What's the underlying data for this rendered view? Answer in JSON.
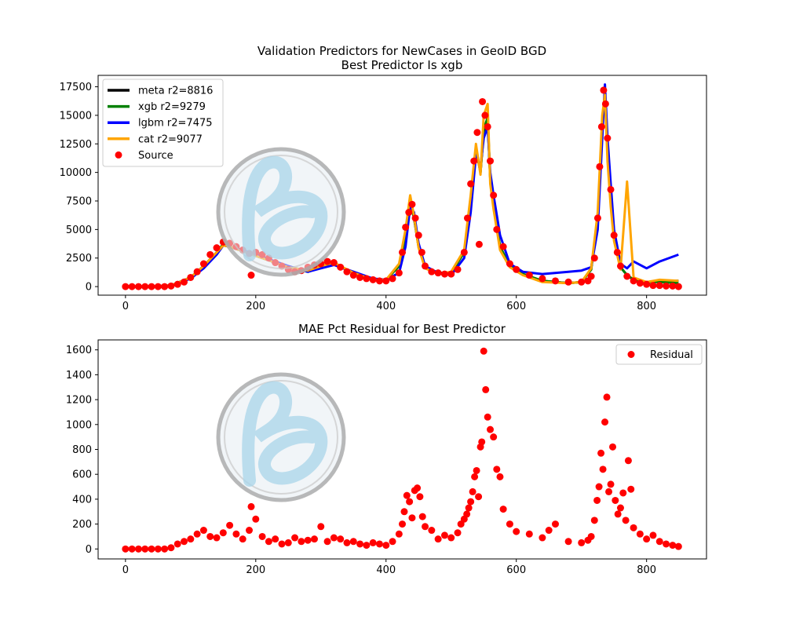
{
  "figure": {
    "background": "#ffffff"
  },
  "chart_data": [
    {
      "type": "line",
      "title": "Validation Predictors for NewCases in GeoID BGD",
      "subtitle": "Best Predictor Is xgb",
      "xlabel": "",
      "ylabel": "",
      "xlim": [
        -42,
        892
      ],
      "ylim": [
        -750,
        18500
      ],
      "xticks": [
        0,
        200,
        400,
        600,
        800
      ],
      "yticks": [
        0,
        2500,
        5000,
        7500,
        10000,
        12500,
        15000,
        17500
      ],
      "grid": false,
      "legend_position": "top-left",
      "x": [
        0,
        40,
        70,
        100,
        120,
        140,
        150,
        160,
        180,
        200,
        220,
        250,
        280,
        300,
        320,
        350,
        380,
        400,
        420,
        430,
        437,
        443,
        450,
        460,
        480,
        500,
        520,
        530,
        538,
        545,
        550,
        556,
        560,
        565,
        575,
        590,
        610,
        640,
        680,
        700,
        715,
        725,
        732,
        736,
        740,
        745,
        750,
        760,
        770,
        780,
        800,
        820,
        849
      ],
      "series": [
        {
          "name": "meta r2=8816",
          "color": "#000000",
          "values": [
            0,
            0,
            100,
            800,
            1800,
            3000,
            3700,
            3500,
            3100,
            2700,
            2300,
            1700,
            1300,
            1700,
            2000,
            1200,
            600,
            600,
            1800,
            4500,
            7500,
            6000,
            3500,
            1700,
            1200,
            1200,
            3000,
            7500,
            12000,
            10000,
            13500,
            14500,
            9500,
            7000,
            3500,
            1800,
            1100,
            500,
            300,
            400,
            1500,
            6000,
            14000,
            17000,
            12000,
            8000,
            4500,
            1700,
            1000,
            600,
            400,
            500,
            500
          ]
        },
        {
          "name": "xgb r2=9279",
          "color": "#008000",
          "values": [
            0,
            0,
            100,
            800,
            1800,
            3000,
            3700,
            3500,
            3100,
            2700,
            2300,
            1700,
            1300,
            1700,
            2000,
            1200,
            600,
            600,
            1800,
            4600,
            7600,
            6100,
            3500,
            1700,
            1200,
            1200,
            3000,
            7600,
            12200,
            10000,
            13800,
            14800,
            9500,
            7000,
            3500,
            1800,
            1100,
            500,
            300,
            400,
            1500,
            6000,
            14000,
            17200,
            12000,
            8000,
            4500,
            1700,
            1000,
            600,
            400,
            400,
            300
          ]
        },
        {
          "name": "lgbm r2=7475",
          "color": "#0000ff",
          "values": [
            0,
            0,
            100,
            700,
            1600,
            2800,
            3600,
            3500,
            3200,
            2800,
            2400,
            1800,
            1300,
            1600,
            1900,
            1300,
            700,
            600,
            1200,
            3500,
            7000,
            6500,
            3800,
            1800,
            1200,
            1000,
            2500,
            6500,
            11500,
            10500,
            13000,
            14000,
            10000,
            8000,
            4500,
            2000,
            1300,
            1100,
            1300,
            1400,
            1700,
            5000,
            13000,
            17700,
            13000,
            9000,
            5000,
            2000,
            1600,
            2200,
            1600,
            2200,
            2800
          ]
        },
        {
          "name": "cat r2=9077",
          "color": "#ffa500",
          "values": [
            0,
            0,
            100,
            800,
            1800,
            3000,
            3600,
            3500,
            3100,
            2700,
            2300,
            1700,
            1400,
            1800,
            2100,
            1200,
            600,
            600,
            2000,
            5000,
            8000,
            6200,
            3400,
            1600,
            1100,
            1300,
            3200,
            8000,
            12500,
            9800,
            15000,
            16000,
            9000,
            6800,
            3200,
            1700,
            1000,
            400,
            300,
            400,
            1600,
            6500,
            15000,
            16800,
            11000,
            7000,
            4000,
            1500,
            9200,
            800,
            400,
            600,
            500
          ]
        }
      ],
      "scatter_series": {
        "name": "Source",
        "color": "#ff0000",
        "x": [
          0,
          10,
          20,
          30,
          40,
          50,
          60,
          70,
          80,
          90,
          100,
          110,
          120,
          130,
          140,
          150,
          160,
          170,
          180,
          190,
          193,
          200,
          210,
          220,
          230,
          240,
          250,
          260,
          270,
          280,
          290,
          300,
          310,
          320,
          330,
          340,
          350,
          360,
          370,
          380,
          390,
          400,
          410,
          420,
          425,
          430,
          435,
          440,
          445,
          450,
          455,
          460,
          470,
          480,
          490,
          500,
          510,
          520,
          525,
          530,
          535,
          540,
          543,
          548,
          552,
          556,
          560,
          565,
          570,
          580,
          590,
          600,
          620,
          640,
          660,
          680,
          700,
          710,
          715,
          720,
          725,
          728,
          731,
          734,
          737,
          740,
          745,
          750,
          755,
          760,
          770,
          780,
          790,
          800,
          810,
          820,
          830,
          840,
          849
        ],
        "values": [
          0,
          0,
          0,
          0,
          0,
          0,
          0,
          50,
          200,
          400,
          800,
          1300,
          2000,
          2800,
          3400,
          3900,
          3800,
          3500,
          3200,
          2900,
          1000,
          3000,
          2800,
          2500,
          2100,
          1800,
          1500,
          1300,
          1400,
          1700,
          1900,
          2000,
          2200,
          2100,
          1700,
          1300,
          1000,
          800,
          700,
          600,
          500,
          500,
          700,
          1200,
          3000,
          5200,
          6500,
          7200,
          6000,
          4500,
          3000,
          1800,
          1300,
          1200,
          1100,
          1100,
          1500,
          3000,
          6000,
          9000,
          11000,
          13500,
          3700,
          16200,
          15000,
          14000,
          11000,
          8000,
          5000,
          3500,
          2000,
          1500,
          1000,
          700,
          500,
          400,
          400,
          500,
          900,
          2500,
          6000,
          10500,
          14000,
          17200,
          16000,
          13000,
          8500,
          4500,
          3000,
          1800,
          900,
          500,
          300,
          200,
          100,
          100,
          50,
          50,
          0
        ]
      }
    },
    {
      "type": "scatter",
      "title": "MAE Pct Residual for Best Predictor",
      "xlabel": "",
      "ylabel": "",
      "xlim": [
        -42,
        892
      ],
      "ylim": [
        -80,
        1680
      ],
      "xticks": [
        0,
        200,
        400,
        600,
        800
      ],
      "yticks": [
        0,
        200,
        400,
        600,
        800,
        1000,
        1200,
        1400,
        1600
      ],
      "grid": false,
      "legend_position": "top-right",
      "series": [
        {
          "name": "Residual",
          "color": "#ff0000",
          "x": [
            0,
            10,
            20,
            30,
            40,
            50,
            60,
            70,
            80,
            90,
            100,
            110,
            120,
            130,
            140,
            150,
            160,
            170,
            180,
            190,
            193,
            200,
            210,
            220,
            230,
            240,
            250,
            260,
            270,
            280,
            290,
            300,
            310,
            320,
            330,
            340,
            350,
            360,
            370,
            380,
            390,
            400,
            410,
            420,
            425,
            428,
            432,
            436,
            440,
            444,
            448,
            452,
            456,
            460,
            470,
            480,
            490,
            500,
            510,
            515,
            520,
            524,
            527,
            530,
            533,
            536,
            539,
            542,
            545,
            547,
            550,
            553,
            556,
            560,
            565,
            570,
            575,
            580,
            590,
            600,
            620,
            640,
            650,
            660,
            680,
            700,
            710,
            715,
            720,
            724,
            727,
            730,
            733,
            736,
            739,
            742,
            745,
            748,
            752,
            756,
            760,
            764,
            768,
            772,
            776,
            780,
            790,
            800,
            810,
            820,
            830,
            840,
            849
          ],
          "values": [
            0,
            0,
            0,
            0,
            0,
            0,
            0,
            10,
            40,
            60,
            80,
            120,
            150,
            100,
            90,
            130,
            190,
            120,
            80,
            150,
            340,
            240,
            100,
            60,
            80,
            40,
            50,
            90,
            60,
            70,
            80,
            180,
            60,
            90,
            80,
            50,
            60,
            40,
            30,
            50,
            40,
            30,
            60,
            120,
            200,
            300,
            430,
            380,
            250,
            470,
            490,
            420,
            260,
            180,
            150,
            80,
            110,
            90,
            130,
            200,
            240,
            280,
            330,
            380,
            460,
            580,
            630,
            420,
            820,
            860,
            1590,
            1280,
            1060,
            960,
            900,
            640,
            580,
            320,
            200,
            140,
            120,
            90,
            150,
            200,
            60,
            50,
            70,
            100,
            230,
            390,
            500,
            770,
            640,
            1020,
            1220,
            460,
            520,
            820,
            390,
            280,
            330,
            450,
            230,
            710,
            480,
            170,
            120,
            80,
            110,
            60,
            40,
            30,
            20
          ]
        }
      ]
    }
  ]
}
